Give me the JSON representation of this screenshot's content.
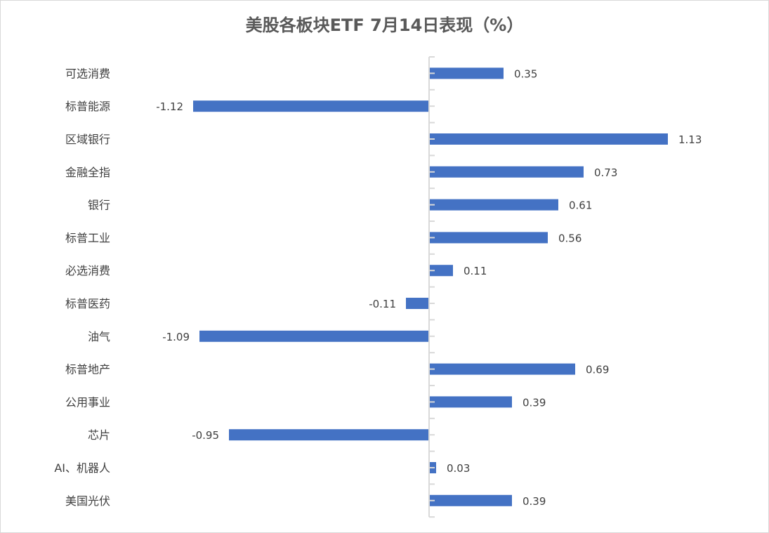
{
  "chart_data": {
    "type": "bar",
    "orientation": "horizontal",
    "title": "美股各板块ETF  7月14日表现（%）",
    "categories": [
      "可选消费",
      "标普能源",
      "区域银行",
      "金融全指",
      "银行",
      "标普工业",
      "必选消费",
      "标普医药",
      "油气",
      "标普地产",
      "公用事业",
      "芯片",
      "AI、机器人",
      "美国光伏"
    ],
    "values": [
      0.35,
      -1.12,
      1.13,
      0.73,
      0.61,
      0.56,
      0.11,
      -0.11,
      -1.09,
      0.69,
      0.39,
      -0.95,
      0.03,
      0.39
    ],
    "value_labels": [
      "0.35",
      "-1.12",
      "1.13",
      "0.73",
      "0.61",
      "0.56",
      "0.11",
      "-0.11",
      "-1.09",
      "0.69",
      "0.39",
      "-0.95",
      "0.03",
      "0.39"
    ],
    "xlabel": "",
    "ylabel": "",
    "grid": false,
    "legend": "none",
    "colors": {
      "bar": "#4472c4",
      "axis": "#d9d9d9",
      "text": "#404040",
      "title": "#595959"
    }
  }
}
